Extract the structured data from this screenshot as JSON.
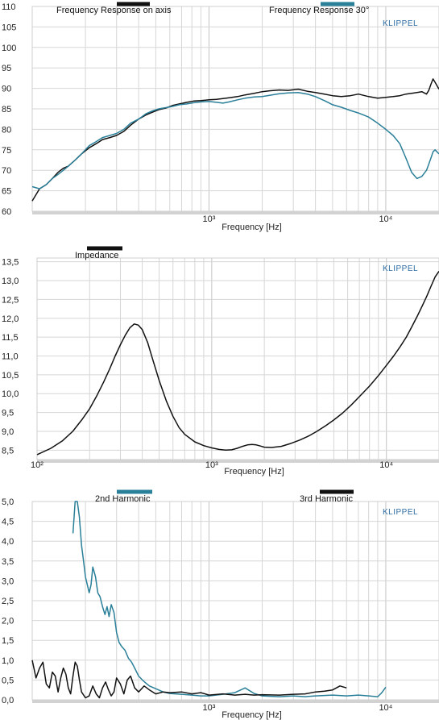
{
  "brand_text": "KLIPPEL",
  "chart_data": [
    {
      "type": "line",
      "xlabel": "Frequency  [Hz]",
      "ylabel": "",
      "xscale": "log",
      "xlim": [
        100,
        20000
      ],
      "ylim": [
        60,
        110
      ],
      "yticks": [
        "60",
        "65",
        "70",
        "75",
        "80",
        "85",
        "90",
        "95",
        "100",
        "105",
        "110"
      ],
      "xticks": [
        "10³",
        "10⁴"
      ],
      "grid": true,
      "series": [
        {
          "name": "Frequency Response on axis",
          "color": "#111111",
          "x": [
            100,
            110,
            120,
            130,
            140,
            150,
            160,
            175,
            190,
            210,
            230,
            250,
            275,
            300,
            330,
            360,
            400,
            440,
            480,
            520,
            570,
            620,
            680,
            750,
            820,
            900,
            1000,
            1100,
            1200,
            1300,
            1450,
            1600,
            1800,
            2000,
            2200,
            2500,
            2800,
            3200,
            3600,
            4000,
            4500,
            5000,
            5600,
            6300,
            7000,
            8000,
            9000,
            10000,
            11000,
            12000,
            13000,
            14000,
            15000,
            16000,
            17000,
            17500,
            18000,
            18500,
            19000,
            20000
          ],
          "y": [
            62.5,
            65.5,
            66.5,
            68.0,
            69.5,
            70.5,
            71.0,
            72.5,
            74.0,
            75.5,
            76.5,
            77.5,
            78.0,
            78.5,
            79.5,
            81.0,
            82.5,
            83.5,
            84.2,
            84.8,
            85.2,
            85.8,
            86.2,
            86.6,
            86.9,
            87.0,
            87.2,
            87.3,
            87.5,
            87.7,
            88.0,
            88.4,
            88.8,
            89.2,
            89.4,
            89.6,
            89.5,
            89.8,
            89.3,
            89.0,
            88.6,
            88.2,
            88.0,
            88.2,
            88.6,
            88.0,
            87.6,
            87.8,
            88.0,
            88.2,
            88.6,
            88.8,
            89.0,
            89.2,
            88.6,
            89.5,
            91.0,
            92.3,
            91.5,
            89.8
          ]
        },
        {
          "name": "Frequency Response 30°",
          "color": "#2a7f99",
          "x": [
            100,
            110,
            120,
            130,
            140,
            150,
            160,
            175,
            190,
            210,
            230,
            250,
            275,
            300,
            330,
            360,
            400,
            440,
            480,
            520,
            570,
            620,
            680,
            750,
            820,
            900,
            1000,
            1100,
            1200,
            1300,
            1450,
            1600,
            1800,
            2000,
            2200,
            2500,
            2800,
            3200,
            3600,
            4000,
            4500,
            5000,
            5600,
            6300,
            7000,
            8000,
            9000,
            10000,
            11000,
            12000,
            13000,
            14000,
            15000,
            16000,
            17000,
            17500,
            18000,
            18500,
            19000,
            20000
          ],
          "y": [
            66.0,
            65.5,
            66.5,
            68.0,
            69.0,
            70.0,
            71.0,
            72.5,
            74.0,
            76.0,
            77.0,
            78.0,
            78.5,
            79.0,
            80.0,
            81.5,
            82.5,
            83.8,
            84.5,
            85.0,
            85.3,
            85.6,
            86.0,
            86.2,
            86.5,
            86.7,
            86.8,
            86.6,
            86.4,
            86.7,
            87.2,
            87.6,
            87.9,
            88.0,
            88.3,
            88.7,
            88.9,
            89.0,
            88.6,
            88.0,
            87.0,
            86.0,
            85.4,
            84.6,
            84.0,
            83.0,
            81.5,
            80.0,
            78.5,
            76.5,
            73.0,
            69.5,
            68.0,
            68.5,
            70.0,
            71.5,
            73.0,
            74.5,
            75.0,
            74.0
          ]
        }
      ],
      "legend_placement": "top"
    },
    {
      "type": "line",
      "xlabel": "Frequency  [Hz]",
      "ylabel": "",
      "xscale": "log",
      "xlim": [
        100,
        20000
      ],
      "ylim": [
        8.25,
        13.6
      ],
      "yticks": [
        "8,5",
        "9,0",
        "9,5",
        "10,0",
        "10,5",
        "11,0",
        "11,5",
        "12,0",
        "12,5",
        "13,0",
        "13,5"
      ],
      "xticks": [
        "10²",
        "10³",
        "10⁴"
      ],
      "grid": true,
      "series": [
        {
          "name": "Impedance",
          "color": "#111111",
          "x": [
            100,
            120,
            140,
            160,
            180,
            200,
            220,
            240,
            260,
            280,
            300,
            320,
            340,
            360,
            380,
            400,
            430,
            460,
            500,
            550,
            600,
            650,
            700,
            800,
            900,
            1000,
            1100,
            1200,
            1300,
            1400,
            1500,
            1600,
            1700,
            1800,
            1900,
            2000,
            2200,
            2500,
            2800,
            3200,
            3600,
            4000,
            4500,
            5000,
            5600,
            6300,
            7000,
            8000,
            9000,
            10000,
            11000,
            12000,
            13000,
            14000,
            15000,
            16000,
            17000,
            18000,
            19000,
            20000
          ],
          "y": [
            8.38,
            8.55,
            8.75,
            9.0,
            9.3,
            9.6,
            9.95,
            10.3,
            10.65,
            11.0,
            11.3,
            11.55,
            11.75,
            11.85,
            11.82,
            11.7,
            11.35,
            10.9,
            10.35,
            9.8,
            9.4,
            9.1,
            8.92,
            8.72,
            8.62,
            8.56,
            8.52,
            8.5,
            8.51,
            8.55,
            8.6,
            8.64,
            8.65,
            8.64,
            8.61,
            8.58,
            8.57,
            8.6,
            8.67,
            8.77,
            8.88,
            9.0,
            9.15,
            9.3,
            9.48,
            9.7,
            9.92,
            10.2,
            10.48,
            10.75,
            11.0,
            11.25,
            11.5,
            11.78,
            12.05,
            12.32,
            12.58,
            12.85,
            13.1,
            13.25
          ]
        }
      ],
      "legend_placement": "top-left"
    },
    {
      "type": "line",
      "xlabel": "Frequency  [Hz]",
      "ylabel": "",
      "xscale": "log",
      "xlim": [
        100,
        20000
      ],
      "ylim": [
        0,
        5
      ],
      "yticks": [
        "0,0",
        "0,5",
        "1,0",
        "1,5",
        "2,0",
        "2,5",
        "3,0",
        "3,5",
        "4,0",
        "4,5",
        "5,0"
      ],
      "xticks": [
        "10³",
        "10⁴"
      ],
      "grid": true,
      "series": [
        {
          "name": "2nd Harmonic",
          "color": "#2a7f99",
          "x": [
            170,
            175,
            180,
            185,
            190,
            195,
            200,
            205,
            210,
            215,
            220,
            228,
            235,
            242,
            250,
            258,
            265,
            272,
            280,
            290,
            300,
            310,
            320,
            335,
            350,
            365,
            380,
            400,
            420,
            440,
            460,
            500,
            550,
            600,
            700,
            800,
            900,
            1000,
            1200,
            1400,
            1600,
            1800,
            2000,
            2500,
            3000,
            3500,
            4000,
            5000,
            6000,
            7000,
            8000,
            9000,
            9500,
            10000
          ],
          "y": [
            4.2,
            5.0,
            5.0,
            4.6,
            3.9,
            3.5,
            3.1,
            2.9,
            2.7,
            2.9,
            3.35,
            3.1,
            2.7,
            2.6,
            2.35,
            2.15,
            2.35,
            2.1,
            2.4,
            2.2,
            1.7,
            1.45,
            1.35,
            1.25,
            1.05,
            0.95,
            0.8,
            0.6,
            0.5,
            0.42,
            0.35,
            0.28,
            0.2,
            0.16,
            0.14,
            0.12,
            0.1,
            0.1,
            0.14,
            0.18,
            0.3,
            0.16,
            0.1,
            0.08,
            0.1,
            0.08,
            0.1,
            0.12,
            0.1,
            0.12,
            0.1,
            0.08,
            0.18,
            0.32
          ]
        },
        {
          "name": "3rd Harmonic",
          "color": "#111111",
          "x": [
            100,
            105,
            110,
            115,
            120,
            125,
            130,
            135,
            140,
            145,
            150,
            155,
            160,
            165,
            170,
            175,
            180,
            185,
            190,
            200,
            210,
            220,
            230,
            240,
            250,
            260,
            270,
            280,
            290,
            300,
            315,
            330,
            345,
            360,
            380,
            400,
            430,
            460,
            500,
            550,
            600,
            700,
            800,
            900,
            1000,
            1200,
            1400,
            1600,
            1800,
            2000,
            2500,
            3000,
            3500,
            4000,
            4500,
            5000,
            5500,
            6000
          ],
          "y": [
            1.0,
            0.55,
            0.8,
            0.95,
            0.4,
            0.3,
            0.7,
            0.6,
            0.2,
            0.55,
            0.8,
            0.65,
            0.3,
            0.15,
            0.6,
            0.95,
            0.85,
            0.5,
            0.2,
            0.05,
            0.1,
            0.35,
            0.15,
            0.05,
            0.3,
            0.45,
            0.25,
            0.1,
            0.2,
            0.55,
            0.4,
            0.15,
            0.5,
            0.6,
            0.3,
            0.2,
            0.35,
            0.25,
            0.15,
            0.2,
            0.18,
            0.2,
            0.15,
            0.18,
            0.12,
            0.15,
            0.12,
            0.14,
            0.12,
            0.13,
            0.12,
            0.14,
            0.15,
            0.2,
            0.22,
            0.25,
            0.35,
            0.3
          ]
        }
      ],
      "legend_placement": "top"
    }
  ]
}
